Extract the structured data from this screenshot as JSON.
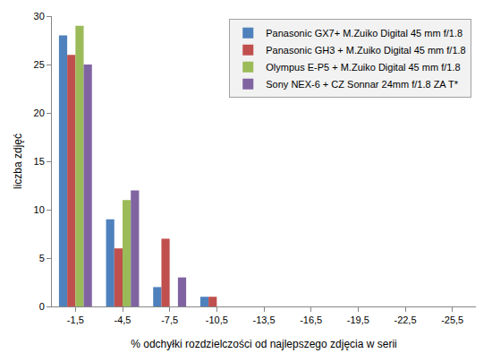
{
  "chart_data": {
    "type": "bar",
    "x_label": "% odchyłki rozdzielczości od najlepszego zdjęcia w serii",
    "y_label": "liczba zdjęć",
    "categories": [
      "-1,5",
      "-4,5",
      "-7,5",
      "-10,5",
      "-13,5",
      "-16,5",
      "-19,5",
      "-22,5",
      "-25,5"
    ],
    "series": [
      {
        "name": "Panasonic GX7+ M.Zuiko Digital 45 mm f/1.8",
        "color": "#4f81bd",
        "values": [
          28,
          9,
          2,
          1,
          0,
          0,
          0,
          0,
          0
        ]
      },
      {
        "name": "Panasonic GH3 + M.Zuiko Digital 45 mm f/1.8",
        "color": "#c0504d",
        "values": [
          26,
          6,
          7,
          1,
          0,
          0,
          0,
          0,
          0
        ]
      },
      {
        "name": "Olympus E-P5 + M.Zuiko Digital 45 mm f/1.8",
        "color": "#9bbb59",
        "values": [
          29,
          11,
          0,
          0,
          0,
          0,
          0,
          0,
          0
        ]
      },
      {
        "name": "Sony NEX-6 + CZ Sonnar 24mm f/1.8 ZA T*",
        "color": "#8064a2",
        "values": [
          25,
          12,
          3,
          0,
          0,
          0,
          0,
          0,
          0
        ]
      }
    ],
    "ylim": [
      0,
      30
    ],
    "yticks": [
      0,
      5,
      10,
      15,
      20,
      25,
      30
    ],
    "grid": false,
    "legend": "top right"
  }
}
